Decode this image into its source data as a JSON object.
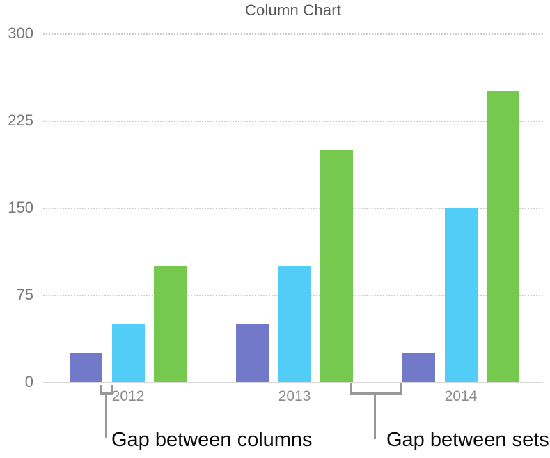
{
  "chart_data": {
    "type": "bar",
    "title": "Column Chart",
    "categories": [
      "2012",
      "2013",
      "2014"
    ],
    "series": [
      {
        "color": "#7379C9",
        "values": [
          25,
          50,
          25
        ]
      },
      {
        "color": "#52CDF8",
        "values": [
          50,
          100,
          150
        ]
      },
      {
        "color": "#76C94F",
        "values": [
          100,
          200,
          250
        ]
      }
    ],
    "ylim": [
      0,
      300
    ],
    "yticks": [
      0,
      75,
      150,
      225,
      300
    ],
    "xlabel": "",
    "ylabel": "",
    "grid": "horizontal-dotted",
    "legend": "none"
  },
  "annotations": {
    "gap_between_columns": "Gap between columns",
    "gap_between_sets": "Gap between sets"
  },
  "colors": {
    "bar_purple": "#7379C9",
    "bar_blue": "#52CDF8",
    "bar_green": "#76C94F",
    "title_text": "#58585a",
    "y_axis_text": "#787878",
    "x_axis_text": "#8c8c8c",
    "gridline": "#cbcbcb",
    "axis_line": "#d8d8d8",
    "bracket": "#98989a",
    "annotation_text": "#0a0a0a"
  }
}
